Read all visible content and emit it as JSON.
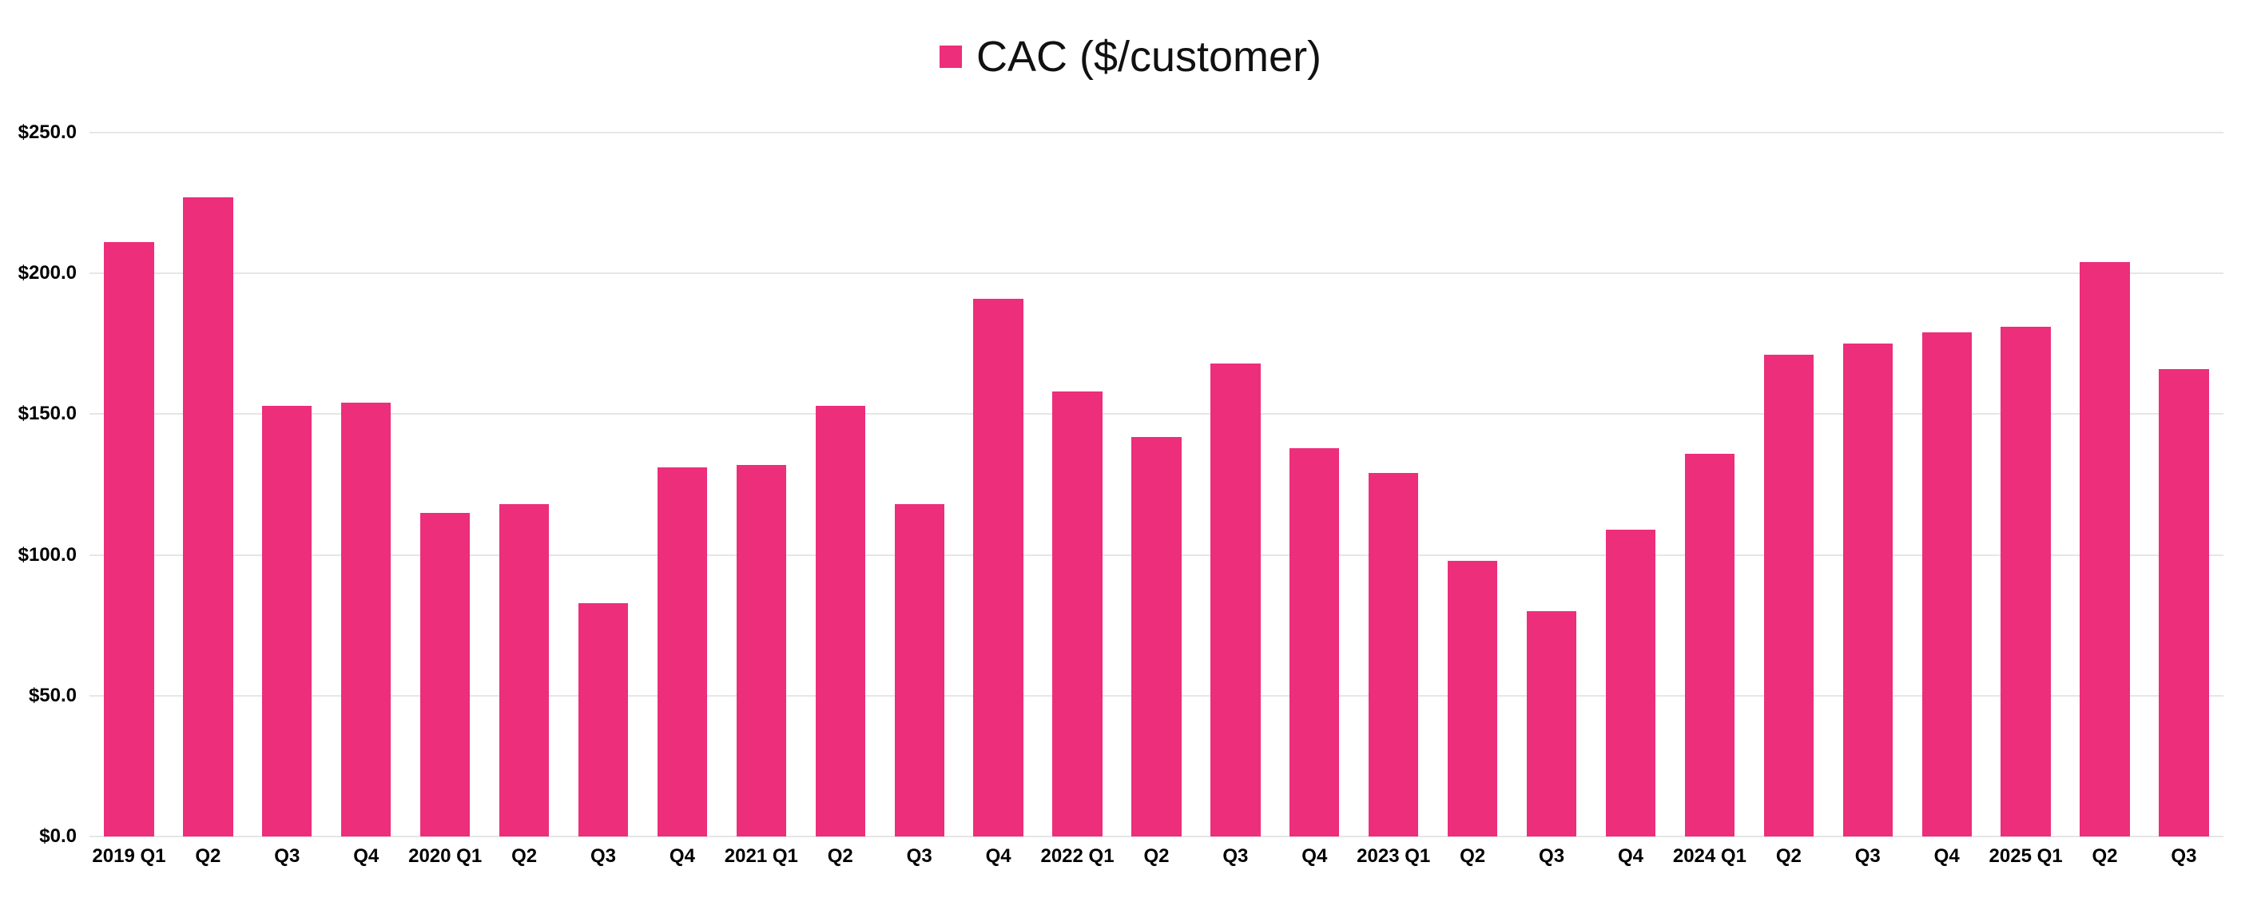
{
  "legend": {
    "label": "CAC ($/customer)",
    "color": "#EC2E7B"
  },
  "chart_data": {
    "type": "bar",
    "title": "CAC ($/customer)",
    "categories": [
      "2019 Q1",
      "Q2",
      "Q3",
      "Q4",
      "2020 Q1",
      "Q2",
      "Q3",
      "Q4",
      "2021 Q1",
      "Q2",
      "Q3",
      "Q4",
      "2022 Q1",
      "Q2",
      "Q3",
      "Q4",
      "2023 Q1",
      "Q2",
      "Q3",
      "Q4",
      "2024 Q1",
      "Q2",
      "Q3",
      "Q4",
      "2025 Q1",
      "Q2",
      "Q3"
    ],
    "values": [
      211,
      227,
      153,
      154,
      115,
      118,
      83,
      131,
      132,
      153,
      118,
      191,
      158,
      142,
      168,
      138,
      129,
      98,
      80,
      109,
      136,
      171,
      175,
      179,
      181,
      204,
      166
    ],
    "xlabel": "",
    "ylabel": "",
    "ylim": [
      0,
      250
    ],
    "yticks": [
      0,
      50,
      100,
      150,
      200,
      250
    ],
    "ytick_labels": [
      "$0.0",
      "$50.0",
      "$100.0",
      "$150.0",
      "$200.0",
      "$250.0"
    ],
    "bar_color": "#EC2E7B",
    "grid": true,
    "legend_position": "top"
  }
}
